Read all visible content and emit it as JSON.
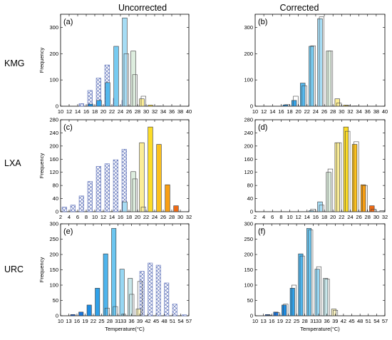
{
  "figure": {
    "column_titles": [
      "Uncorrected",
      "Corrected"
    ],
    "row_labels": [
      "KMG",
      "LXA",
      "URC"
    ],
    "y_axis_label": "Frequency",
    "x_axis_label": "Temperature(°C)"
  },
  "chart_data": [
    {
      "panel": "(a)",
      "row": "KMG",
      "column": "Uncorrected",
      "type": "bar",
      "ylabel": "Frequency",
      "xlabel": "",
      "xlim": [
        10,
        40
      ],
      "ylim": [
        0,
        350
      ],
      "x_ticks": [
        10,
        12,
        14,
        16,
        18,
        20,
        22,
        24,
        26,
        28,
        30,
        32,
        34,
        36,
        38,
        40
      ],
      "y_ticks": [
        0,
        100,
        200,
        300
      ],
      "series": [
        {
          "style": "hatched",
          "x": [
            15,
            17,
            19,
            21,
            23,
            25,
            27,
            29,
            31,
            33,
            35
          ],
          "values": [
            10,
            60,
            107,
            157,
            30,
            22,
            0,
            0,
            0,
            0,
            0
          ]
        },
        {
          "style": "solid",
          "x": [
            15,
            17,
            19,
            21,
            23,
            25,
            27,
            29,
            31,
            33,
            35
          ],
          "values": [
            0,
            8,
            22,
            90,
            228,
            336,
            210,
            28,
            4,
            1,
            0
          ]
        },
        {
          "style": "outline",
          "x": [
            15,
            17,
            19,
            21,
            23,
            25,
            27,
            29,
            31,
            33,
            35
          ],
          "values": [
            0,
            0,
            0,
            0,
            0,
            200,
            120,
            38,
            0,
            0,
            0
          ]
        }
      ]
    },
    {
      "panel": "(b)",
      "row": "KMG",
      "column": "Corrected",
      "type": "bar",
      "ylabel": "",
      "xlabel": "",
      "xlim": [
        10,
        40
      ],
      "ylim": [
        0,
        350
      ],
      "x_ticks": [
        10,
        12,
        14,
        16,
        18,
        20,
        22,
        24,
        26,
        28,
        30,
        32,
        34,
        36,
        38,
        40
      ],
      "y_ticks": [
        0,
        100,
        200,
        300
      ],
      "series": [
        {
          "style": "solid",
          "x": [
            15,
            17,
            19,
            21,
            23,
            25,
            27,
            29,
            31,
            33,
            35
          ],
          "values": [
            0,
            5,
            22,
            88,
            228,
            333,
            210,
            28,
            4,
            1,
            0
          ]
        },
        {
          "style": "outline",
          "x": [
            15,
            17,
            19,
            21,
            23,
            25,
            27,
            29,
            31,
            33,
            35
          ],
          "values": [
            0,
            6,
            38,
            78,
            230,
            340,
            210,
            12,
            3,
            1,
            0
          ]
        }
      ]
    },
    {
      "panel": "(c)",
      "row": "LXA",
      "column": "Uncorrected",
      "type": "bar",
      "ylabel": "Frequency",
      "xlabel": "",
      "xlim": [
        2,
        32
      ],
      "ylim": [
        0,
        280
      ],
      "x_ticks": [
        2,
        4,
        6,
        8,
        10,
        12,
        14,
        16,
        18,
        20,
        22,
        24,
        26,
        28,
        30,
        32
      ],
      "y_ticks": [
        0,
        40,
        80,
        120,
        160,
        200,
        240,
        280
      ],
      "series": [
        {
          "style": "hatched",
          "x": [
            3,
            5,
            7,
            9,
            11,
            13,
            15,
            17,
            19,
            21,
            23,
            25,
            27,
            29,
            31
          ],
          "values": [
            14,
            20,
            48,
            92,
            138,
            146,
            158,
            190,
            0,
            0,
            0,
            0,
            0,
            0,
            0
          ]
        },
        {
          "style": "solid",
          "x": [
            3,
            5,
            7,
            9,
            11,
            13,
            15,
            17,
            19,
            21,
            23,
            25,
            27,
            29,
            31
          ],
          "values": [
            0,
            0,
            0,
            0,
            0,
            0,
            0,
            30,
            122,
            210,
            258,
            205,
            82,
            18,
            0
          ]
        },
        {
          "style": "outline",
          "x": [
            3,
            5,
            7,
            9,
            11,
            13,
            15,
            17,
            19,
            21,
            23,
            25,
            27,
            29,
            31
          ],
          "values": [
            0,
            0,
            0,
            0,
            0,
            0,
            0,
            0,
            100,
            14,
            0,
            0,
            0,
            0,
            0
          ]
        }
      ]
    },
    {
      "panel": "(d)",
      "row": "LXA",
      "column": "Corrected",
      "type": "bar",
      "ylabel": "",
      "xlabel": "",
      "xlim": [
        2,
        32
      ],
      "ylim": [
        0,
        280
      ],
      "x_ticks": [
        2,
        4,
        6,
        8,
        10,
        12,
        14,
        16,
        18,
        20,
        22,
        24,
        26,
        28,
        30,
        32
      ],
      "y_ticks": [
        0,
        40,
        80,
        120,
        160,
        200,
        240,
        280
      ],
      "series": [
        {
          "style": "solid",
          "x": [
            15,
            17,
            19,
            21,
            23,
            25,
            27,
            29,
            31
          ],
          "values": [
            3,
            30,
            120,
            210,
            258,
            205,
            82,
            18,
            0
          ]
        },
        {
          "style": "outline",
          "x": [
            15,
            17,
            19,
            21,
            23,
            25,
            27,
            29,
            31
          ],
          "values": [
            8,
            20,
            130,
            210,
            245,
            213,
            80,
            8,
            3
          ]
        }
      ]
    },
    {
      "panel": "(e)",
      "row": "URC",
      "column": "Uncorrected",
      "type": "bar",
      "ylabel": "Frequency",
      "xlabel": "Temperature(°C)",
      "xlim": [
        10,
        57
      ],
      "ylim": [
        0,
        300
      ],
      "x_ticks": [
        10,
        13,
        16,
        19,
        22,
        25,
        28,
        31,
        33,
        36,
        39,
        42,
        45,
        48,
        51,
        54,
        57
      ],
      "y_ticks": [
        0,
        50,
        100,
        150,
        200,
        250,
        300
      ],
      "series": [
        {
          "style": "hatched",
          "x": [
            40,
            43,
            46,
            49,
            52,
            55.5
          ],
          "values": [
            145,
            172,
            165,
            107,
            38,
            3
          ]
        },
        {
          "style": "solid",
          "x": [
            14.5,
            17.5,
            20.5,
            23.5,
            26.5,
            29.5,
            32.5,
            35.5,
            38.5
          ],
          "values": [
            4,
            12,
            35,
            90,
            202,
            285,
            152,
            122,
            22
          ]
        },
        {
          "style": "outline",
          "x": [
            26.5,
            29.5,
            32.5,
            35.5,
            38.5
          ],
          "values": [
            25,
            30,
            5,
            70,
            112
          ]
        }
      ]
    },
    {
      "panel": "(f)",
      "row": "URC",
      "column": "Corrected",
      "type": "bar",
      "ylabel": "",
      "xlabel": "Temperature(°C)",
      "xlim": [
        10,
        57
      ],
      "ylim": [
        0,
        300
      ],
      "x_ticks": [
        10,
        13,
        16,
        19,
        22,
        25,
        28,
        31,
        33,
        36,
        39,
        42,
        45,
        48,
        51,
        54,
        57
      ],
      "y_ticks": [
        0,
        50,
        100,
        150,
        200,
        250,
        300
      ],
      "series": [
        {
          "style": "solid",
          "x": [
            14.5,
            17.5,
            20.5,
            23.5,
            26.5,
            29.5,
            32.5,
            35.5,
            38.5
          ],
          "values": [
            4,
            12,
            35,
            90,
            202,
            285,
            152,
            122,
            22
          ]
        },
        {
          "style": "outline",
          "x": [
            14.5,
            17.5,
            20.5,
            23.5,
            26.5,
            29.5,
            32.5,
            35.5,
            38.5
          ],
          "values": [
            2,
            10,
            38,
            100,
            195,
            280,
            160,
            120,
            18
          ]
        }
      ]
    }
  ]
}
